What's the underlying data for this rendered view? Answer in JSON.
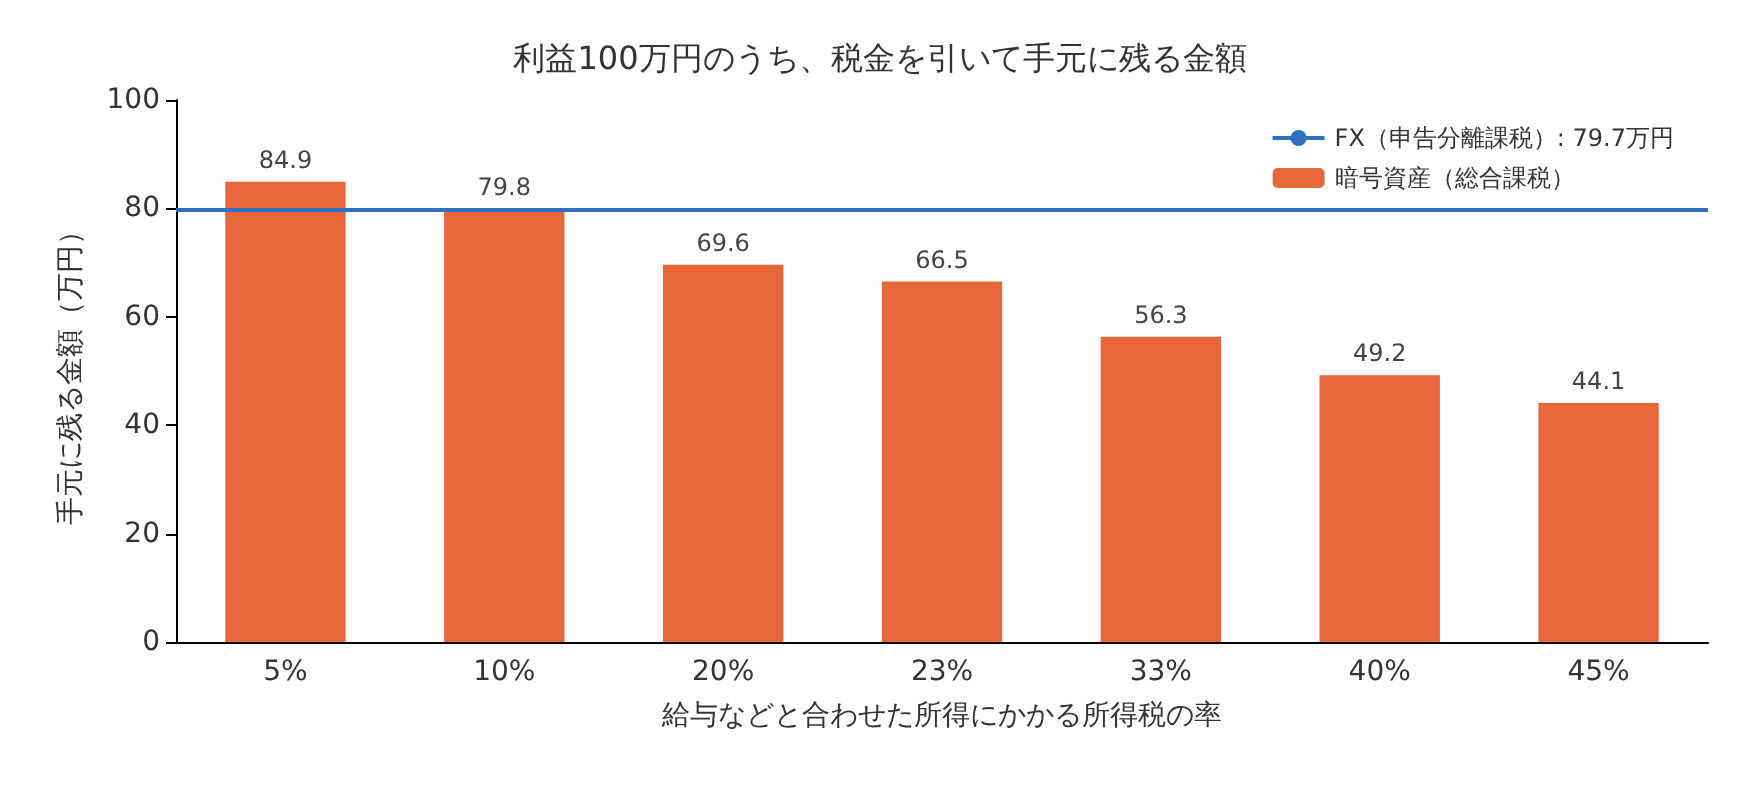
{
  "chart_data": {
    "type": "bar",
    "title": "利益100万円のうち、税金を引いて手元に残る金額",
    "xlabel": "給与などと合わせた所得にかかる所得税の率",
    "ylabel": "手元に残る金額（万円）",
    "categories": [
      "5%",
      "10%",
      "20%",
      "23%",
      "33%",
      "40%",
      "45%"
    ],
    "series": [
      {
        "name": "暗号資産（総合課税）",
        "color": "#e8673a",
        "values": [
          84.9,
          79.8,
          69.6,
          66.5,
          56.3,
          49.2,
          44.1
        ]
      }
    ],
    "data_labels": true,
    "ylim": [
      0,
      100
    ],
    "yticks": [
      0,
      20,
      40,
      60,
      80,
      100
    ],
    "grid": false,
    "legend": "top right",
    "ref_lines": [
      {
        "axis": "y",
        "value": 79.7,
        "label": "FX（申告分離課税）: 79.7万円",
        "color": "#3070c0",
        "line_style": "solid"
      }
    ]
  }
}
